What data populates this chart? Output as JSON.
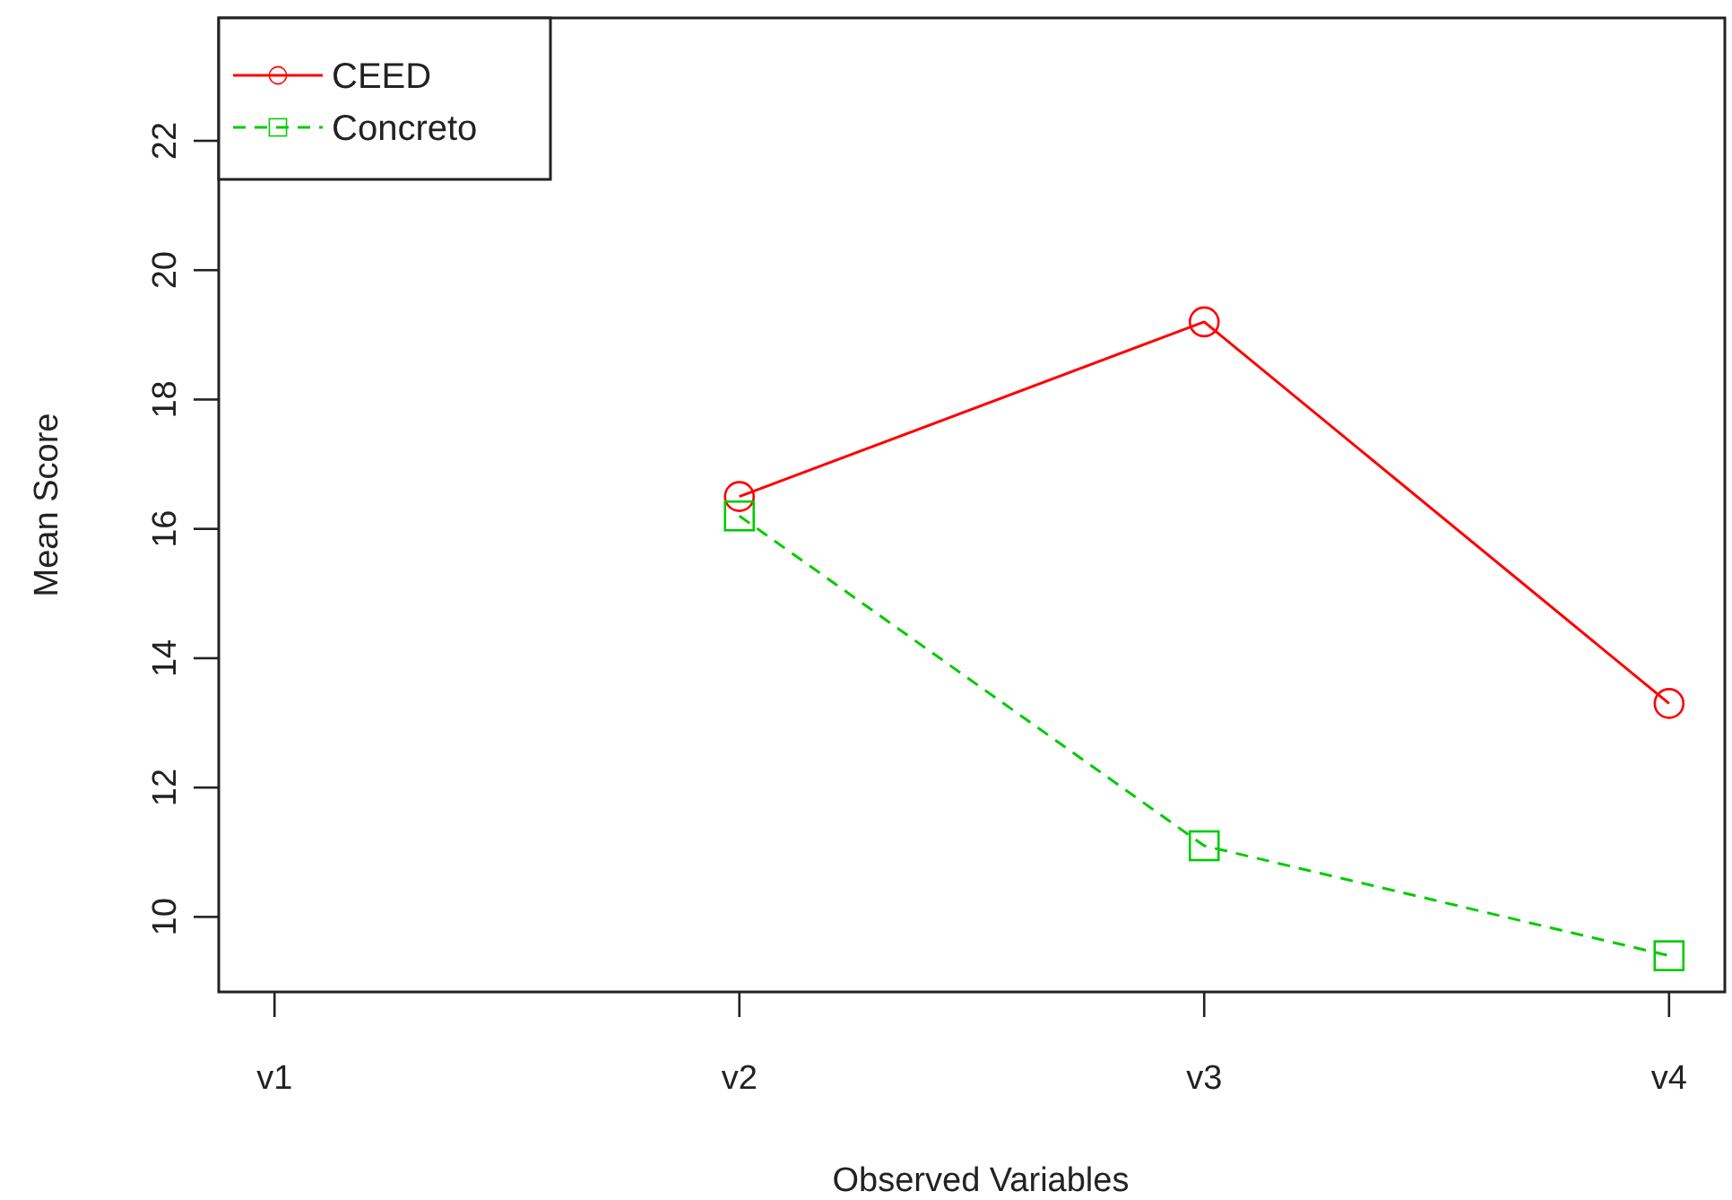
{
  "chart_data": {
    "type": "line",
    "xlabel": "Observed Variables",
    "ylabel": "Mean Score",
    "categories": [
      "v1",
      "v2",
      "v3",
      "v4"
    ],
    "series": [
      {
        "name": "CEED",
        "color": "#ff0000",
        "values": [
          null,
          16.5,
          19.2,
          13.3
        ],
        "marker": "circle",
        "line_style": "solid"
      },
      {
        "name": "Concreto",
        "color": "#00cc00",
        "values": [
          null,
          16.2,
          11.1,
          9.4
        ],
        "marker": "square",
        "line_style": "dashed"
      }
    ],
    "ylim": [
      8.84,
      23.9
    ],
    "yticks": [
      10,
      12,
      14,
      16,
      18,
      20,
      22
    ],
    "grid": false,
    "legend": "top left"
  }
}
